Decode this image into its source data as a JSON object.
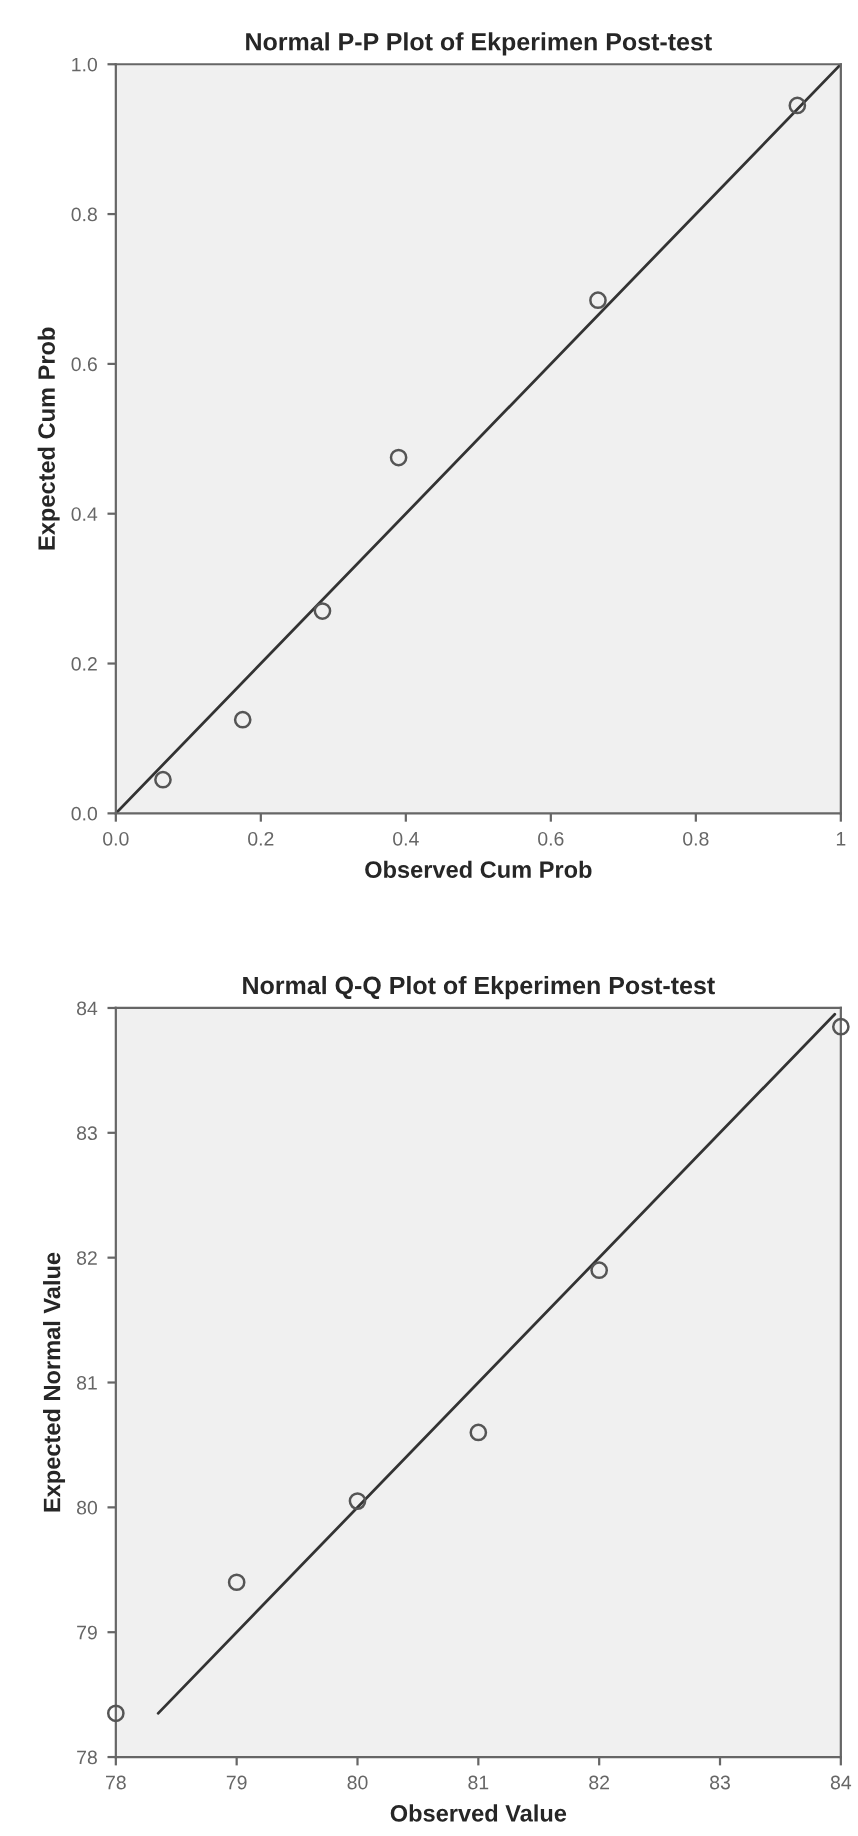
{
  "chart_data": [
    {
      "type": "scatter",
      "title": "Normal P-P Plot of Ekperimen Post-test",
      "xlabel": "Observed Cum Prob",
      "ylabel": "Expected Cum Prob",
      "grid": false,
      "x": [
        0.065,
        0.175,
        0.285,
        0.39,
        0.665,
        0.94
      ],
      "series": [
        {
          "marker": "circle",
          "color": "#555555",
          "values": [
            0.045,
            0.125,
            0.27,
            0.475,
            0.685,
            0.945
          ]
        },
        {
          "type": "line",
          "color": "#333333",
          "x": [
            0,
            1
          ],
          "values": [
            0,
            1
          ]
        }
      ],
      "xlim": [
        0,
        1
      ],
      "ylim": [
        0,
        1
      ],
      "xticks": [
        {
          "value": 0,
          "label": "0.0"
        },
        0.2,
        0.4,
        0.6,
        0.8,
        1
      ],
      "yticks": [
        {
          "value": 0,
          "label": "0.0"
        },
        0.2,
        0.4,
        0.6,
        0.8,
        {
          "value": 1,
          "label": "1.0"
        }
      ]
    },
    {
      "type": "scatter",
      "title": "Normal Q-Q Plot of Ekperimen Post-test",
      "xlabel": "Observed Value",
      "ylabel": "Expected Normal Value",
      "grid": false,
      "x": [
        78,
        79,
        80,
        81,
        82,
        84
      ],
      "series": [
        {
          "marker": "circle",
          "color": "#555555",
          "values": [
            78.35,
            79.4,
            80.05,
            80.6,
            81.9,
            83.85
          ]
        },
        {
          "type": "line",
          "color": "#333333",
          "x": [
            78.35,
            83.95
          ],
          "values": [
            78.35,
            83.95
          ]
        }
      ],
      "xlim": [
        78,
        84
      ],
      "ylim": [
        78,
        84
      ],
      "xticks": [
        78,
        79,
        80,
        81,
        82,
        83,
        84
      ],
      "yticks": [
        78,
        79,
        80,
        81,
        82,
        83,
        84
      ]
    }
  ]
}
